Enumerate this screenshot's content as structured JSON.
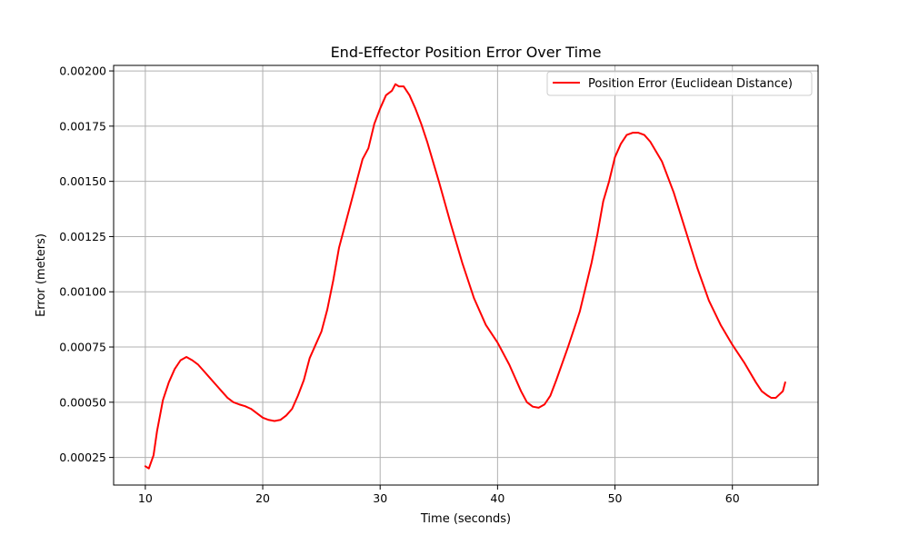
{
  "chart_data": {
    "type": "line",
    "title": "End-Effector Position Error Over Time",
    "xlabel": "Time (seconds)",
    "ylabel": "Error (meters)",
    "xlim": [
      7.3,
      67.3
    ],
    "ylim": [
      0.000125,
      0.002025
    ],
    "xticks": [
      10,
      20,
      30,
      40,
      50,
      60
    ],
    "yticks": [
      0.00025,
      0.0005,
      0.00075,
      0.001,
      0.00125,
      0.0015,
      0.00175,
      0.002
    ],
    "xtick_labels": [
      "10",
      "20",
      "30",
      "40",
      "50",
      "60"
    ],
    "ytick_labels": [
      "0.00025",
      "0.00050",
      "0.00075",
      "0.00100",
      "0.00125",
      "0.00150",
      "0.00175",
      "0.00200"
    ],
    "grid": true,
    "legend_position": "top-right",
    "series": [
      {
        "name": "Position Error (Euclidean Distance)",
        "color": "#ff0000",
        "x": [
          10.0,
          10.3,
          10.7,
          11.0,
          11.5,
          12.0,
          12.5,
          13.0,
          13.5,
          14.0,
          14.5,
          15.0,
          15.5,
          16.0,
          16.5,
          17.0,
          17.5,
          18.0,
          18.5,
          19.0,
          19.5,
          20.0,
          20.5,
          21.0,
          21.5,
          22.0,
          22.5,
          23.0,
          23.5,
          24.0,
          24.5,
          25.0,
          25.5,
          26.0,
          26.5,
          27.0,
          27.5,
          28.0,
          28.5,
          29.0,
          29.5,
          30.0,
          30.5,
          31.0,
          31.3,
          31.6,
          32.0,
          32.5,
          33.0,
          33.5,
          34.0,
          35.0,
          36.0,
          37.0,
          38.0,
          39.0,
          40.0,
          41.0,
          42.0,
          42.5,
          43.0,
          43.5,
          44.0,
          44.5,
          45.0,
          46.0,
          47.0,
          48.0,
          48.5,
          49.0,
          49.5,
          50.0,
          50.5,
          51.0,
          51.5,
          52.0,
          52.5,
          53.0,
          54.0,
          55.0,
          56.0,
          57.0,
          58.0,
          59.0,
          60.0,
          61.0,
          62.0,
          62.5,
          63.0,
          63.3,
          63.7,
          64.0,
          64.3,
          64.5
        ],
        "values": [
          0.00021,
          0.0002,
          0.00026,
          0.00037,
          0.00051,
          0.00059,
          0.00065,
          0.00069,
          0.000705,
          0.00069,
          0.00067,
          0.00064,
          0.00061,
          0.00058,
          0.00055,
          0.00052,
          0.0005,
          0.00049,
          0.000482,
          0.00047,
          0.00045,
          0.00043,
          0.00042,
          0.000415,
          0.00042,
          0.00044,
          0.00047,
          0.00053,
          0.0006,
          0.0007,
          0.00076,
          0.00082,
          0.00092,
          0.00105,
          0.0012,
          0.0013,
          0.0014,
          0.0015,
          0.0016,
          0.00165,
          0.00176,
          0.00183,
          0.00189,
          0.00191,
          0.00194,
          0.00193,
          0.00193,
          0.00189,
          0.00183,
          0.00176,
          0.00168,
          0.0015,
          0.00131,
          0.00113,
          0.00097,
          0.00085,
          0.00077,
          0.00067,
          0.00055,
          0.0005,
          0.00048,
          0.000475,
          0.00049,
          0.00053,
          0.0006,
          0.00075,
          0.00091,
          0.00113,
          0.00126,
          0.00141,
          0.0015,
          0.00161,
          0.00167,
          0.00171,
          0.00172,
          0.00172,
          0.00171,
          0.00168,
          0.00159,
          0.00145,
          0.00128,
          0.00111,
          0.00096,
          0.00085,
          0.00076,
          0.00068,
          0.00059,
          0.00055,
          0.00053,
          0.00052,
          0.00052,
          0.000535,
          0.00055,
          0.00059
        ]
      }
    ]
  }
}
